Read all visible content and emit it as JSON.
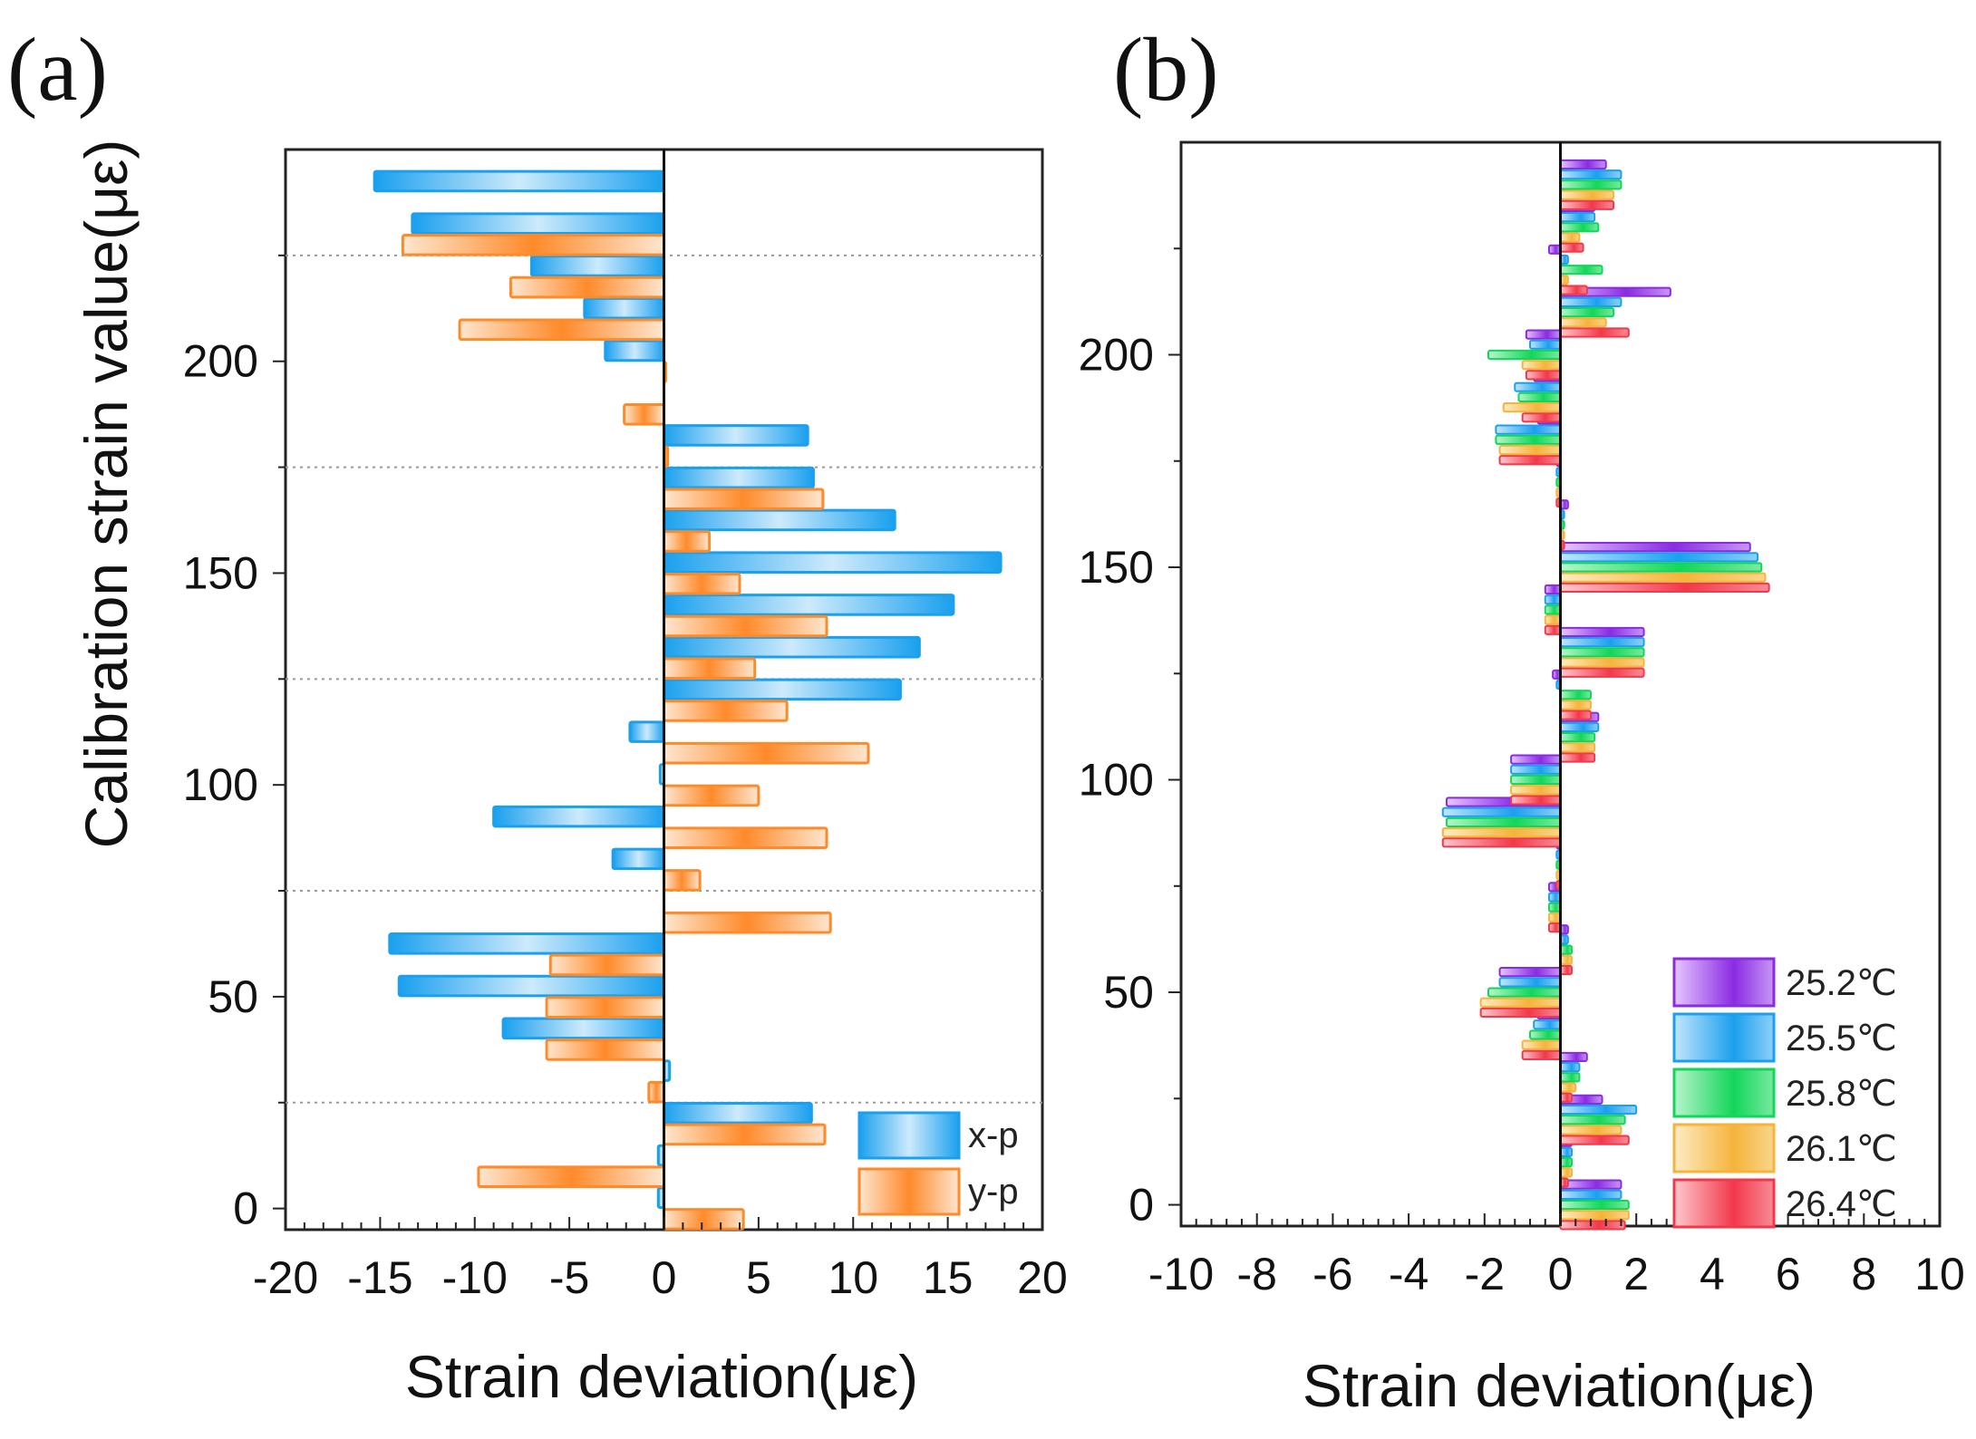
{
  "panels": {
    "a": {
      "label": "(a)"
    },
    "b": {
      "label": "(b)"
    }
  },
  "chart_data": [
    {
      "type": "bar",
      "orientation": "horizontal",
      "panel": "(a)",
      "ylabel": "Calibration strain value(με)",
      "xlabel": "Strain deviation(με)",
      "xlim": [
        -20,
        20
      ],
      "ylim": [
        -5,
        250
      ],
      "xticks": [
        -20,
        -15,
        -10,
        -5,
        0,
        5,
        10,
        15,
        20
      ],
      "yticks": [
        0,
        50,
        100,
        150,
        200
      ],
      "reference_lines_y": [
        25,
        75,
        125,
        175,
        225
      ],
      "legend": [
        "x-p",
        "y-p"
      ],
      "calibration_values": [
        0,
        10,
        20,
        30,
        40,
        50,
        60,
        70,
        80,
        90,
        100,
        110,
        120,
        130,
        140,
        150,
        160,
        170,
        180,
        190,
        200,
        210,
        220,
        230,
        240
      ],
      "series": [
        {
          "name": "x-p",
          "color": "#1aa0ee",
          "values": [
            -0.3,
            -0.3,
            7.8,
            0.3,
            -8.5,
            -14,
            -14.5,
            0,
            -2.7,
            -9,
            -0.2,
            -1.8,
            12.5,
            13.5,
            15.3,
            17.8,
            12.2,
            7.9,
            7.6,
            0,
            -3.1,
            -4.2,
            -7.0,
            -13.3,
            -15.3
          ]
        },
        {
          "name": "y-p",
          "color": "#ff8a2a",
          "values": [
            4.2,
            -9.8,
            8.5,
            -0.8,
            -6.2,
            -6.2,
            -6.0,
            8.8,
            1.9,
            8.6,
            5.0,
            10.8,
            6.5,
            4.8,
            8.6,
            4.0,
            2.4,
            8.4,
            0.2,
            -2.1,
            0.1,
            -10.8,
            -8.1,
            -13.8,
            0
          ]
        }
      ]
    },
    {
      "type": "bar",
      "orientation": "horizontal",
      "panel": "(b)",
      "xlabel": "Strain deviation(με)",
      "xlim": [
        -10,
        10
      ],
      "ylim": [
        -5,
        250
      ],
      "xticks": [
        -10,
        -8,
        -6,
        -4,
        -2,
        0,
        2,
        4,
        6,
        8,
        10
      ],
      "yticks": [
        0,
        50,
        100,
        150,
        200
      ],
      "legend": [
        "25.2℃",
        "25.5℃",
        "25.8℃",
        "26.1℃",
        "26.4℃"
      ],
      "calibration_values": [
        0,
        10,
        20,
        30,
        40,
        50,
        60,
        70,
        80,
        90,
        100,
        110,
        120,
        130,
        140,
        150,
        160,
        170,
        180,
        190,
        200,
        210,
        220,
        230,
        240
      ],
      "series": [
        {
          "name": "25.2℃",
          "color": "#8a2be2",
          "values": [
            1.6,
            0.3,
            1.1,
            0.7,
            -0.6,
            -1.6,
            0.2,
            -0.3,
            -0.1,
            -3.0,
            -1.3,
            1.0,
            -0.2,
            2.2,
            -0.4,
            5.0,
            0.2,
            -0.1,
            -0.6,
            -0.7,
            -0.9,
            2.9,
            -0.3,
            0.9,
            1.2
          ]
        },
        {
          "name": "25.5℃",
          "color": "#1aa0ee",
          "values": [
            1.6,
            0.3,
            2.0,
            0.5,
            -0.7,
            -1.6,
            0.2,
            -0.3,
            -0.1,
            -3.1,
            -1.3,
            1.0,
            -0.1,
            2.2,
            -0.4,
            5.2,
            0.1,
            -0.1,
            -1.7,
            -1.2,
            -0.8,
            1.6,
            0.2,
            0.9,
            1.6
          ]
        },
        {
          "name": "25.8℃",
          "color": "#12d65a",
          "values": [
            1.8,
            0.3,
            1.7,
            0.5,
            -0.8,
            -1.9,
            0.3,
            -0.3,
            -0.1,
            -3.0,
            -1.3,
            0.9,
            0.8,
            2.2,
            -0.4,
            5.3,
            0.1,
            -0.1,
            -1.7,
            -1.1,
            -1.9,
            1.4,
            1.1,
            1.0,
            1.6
          ]
        },
        {
          "name": "26.1℃",
          "color": "#f5b43a",
          "values": [
            1.8,
            0.3,
            1.6,
            0.4,
            -1.0,
            -2.1,
            0.3,
            -0.3,
            -0.1,
            -3.1,
            -1.3,
            0.9,
            0.8,
            2.2,
            -0.4,
            5.4,
            0.1,
            -0.1,
            -1.6,
            -1.5,
            -1.0,
            1.2,
            0.2,
            0.5,
            1.4
          ]
        },
        {
          "name": "26.4℃",
          "color": "#f2384a",
          "values": [
            1.7,
            0.2,
            1.8,
            0.3,
            -1.0,
            -2.1,
            0.3,
            -0.3,
            -0.1,
            -3.1,
            -1.3,
            0.9,
            0.8,
            2.2,
            -0.4,
            5.5,
            0.1,
            -0.1,
            -1.6,
            -1.0,
            -0.9,
            1.8,
            0.7,
            0.6,
            1.4
          ]
        }
      ]
    }
  ]
}
